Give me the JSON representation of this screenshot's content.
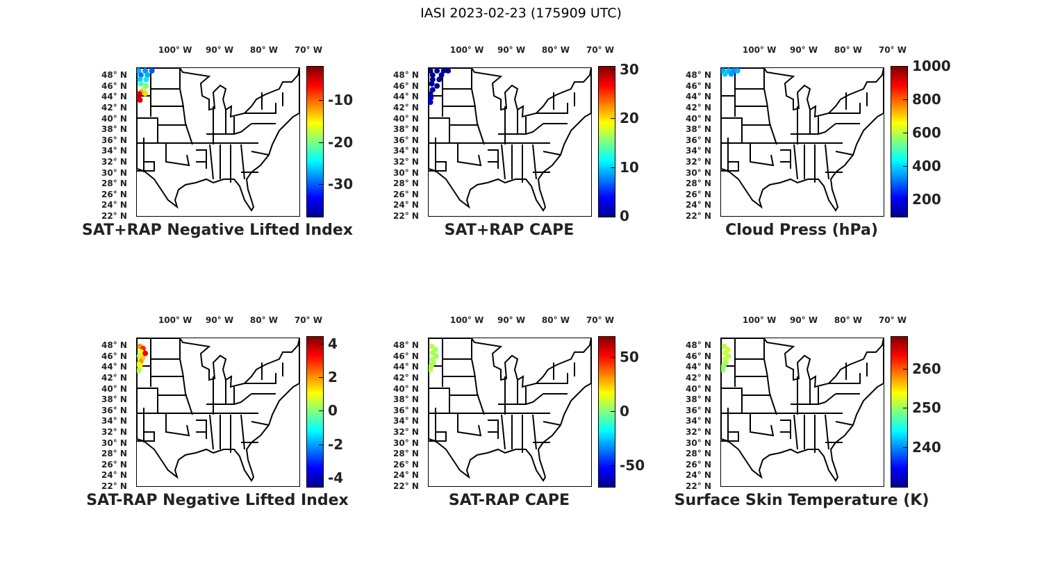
{
  "suptitle": "IASI 2023-02-23 (175909 UTC)",
  "lon_ticks": [
    {
      "lon": -100,
      "label": "100° W"
    },
    {
      "lon": -90,
      "label": "90° W"
    },
    {
      "lon": -80,
      "label": "80° W"
    },
    {
      "lon": -70,
      "label": "70° W"
    }
  ],
  "lat_ticks": [
    {
      "lat": 48,
      "label": "48° N"
    },
    {
      "lat": 46,
      "label": "46° N"
    },
    {
      "lat": 44,
      "label": "44° N"
    },
    {
      "lat": 42,
      "label": "42° N"
    },
    {
      "lat": 40,
      "label": "40° N"
    },
    {
      "lat": 38,
      "label": "38° N"
    },
    {
      "lat": 36,
      "label": "36° N"
    },
    {
      "lat": 34,
      "label": "34° N"
    },
    {
      "lat": 32,
      "label": "32° N"
    },
    {
      "lat": 30,
      "label": "30° N"
    },
    {
      "lat": 28,
      "label": "28° N"
    },
    {
      "lat": 26,
      "label": "26° N"
    },
    {
      "lat": 24,
      "label": "24° N"
    },
    {
      "lat": 22,
      "label": "22° N"
    }
  ],
  "panels": [
    {
      "title": "SAT+RAP Negative Lifted Index",
      "clim": [
        -37.6,
        -1.9
      ],
      "ticks": [
        -10,
        -20,
        -30
      ],
      "points": [
        [
          48.8,
          -106.5,
          -27
        ],
        [
          48.8,
          -105,
          -28
        ],
        [
          48.8,
          -103.5,
          -30
        ],
        [
          48,
          -106,
          -29
        ],
        [
          48,
          -104.5,
          -27
        ],
        [
          47.2,
          -106.2,
          -26
        ],
        [
          47.2,
          -104.8,
          -25
        ],
        [
          46.4,
          -106,
          -22
        ],
        [
          46,
          -104.8,
          -20
        ],
        [
          45.3,
          -105.5,
          -18
        ],
        [
          44.8,
          -106,
          -12
        ],
        [
          44.5,
          -106.3,
          -5
        ],
        [
          44,
          -106.5,
          -4
        ],
        [
          43.4,
          -106.2,
          -5
        ],
        [
          44.6,
          -105,
          -14
        ]
      ]
    },
    {
      "title": "SAT+RAP CAPE",
      "clim": [
        0,
        30.7
      ],
      "ticks": [
        30,
        20,
        10,
        0
      ],
      "points": [
        [
          48.8,
          -106.5,
          0
        ],
        [
          48.8,
          -105,
          0
        ],
        [
          48.8,
          -103.5,
          0
        ],
        [
          48.8,
          -102.5,
          0
        ],
        [
          48,
          -106,
          0
        ],
        [
          48,
          -104,
          0
        ],
        [
          47.2,
          -106,
          0
        ],
        [
          47.2,
          -104.5,
          0
        ],
        [
          46.4,
          -106.2,
          0.5
        ],
        [
          46,
          -105,
          0
        ],
        [
          45.3,
          -106,
          1
        ],
        [
          44.5,
          -106.5,
          0
        ],
        [
          43.8,
          -106.4,
          2
        ],
        [
          43,
          -106.5,
          3
        ]
      ]
    },
    {
      "title": "Cloud Press (hPa)",
      "clim": [
        100,
        1000
      ],
      "ticks": [
        1000,
        800,
        600,
        400,
        200
      ],
      "points": [
        [
          48.8,
          -106.5,
          360
        ],
        [
          48.8,
          -105.2,
          380
        ],
        [
          48.8,
          -104,
          340
        ],
        [
          48.8,
          -103.2,
          370
        ],
        [
          48.2,
          -106,
          390
        ],
        [
          48.2,
          -104.6,
          350
        ]
      ]
    },
    {
      "title": "SAT-RAP Negative Lifted Index",
      "clim": [
        -4.5,
        4.45
      ],
      "ticks": [
        4,
        2,
        0,
        -2,
        -4
      ],
      "points": [
        [
          47.8,
          -106.2,
          2
        ],
        [
          47.4,
          -105.5,
          3
        ],
        [
          46.8,
          -106,
          1
        ],
        [
          46.5,
          -105,
          3.5
        ],
        [
          46,
          -106.3,
          0.5
        ],
        [
          45.6,
          -105.6,
          1.5
        ],
        [
          45,
          -106,
          2
        ],
        [
          44.5,
          -106.5,
          0.8
        ],
        [
          44,
          -106.2,
          1
        ],
        [
          43.3,
          -106.5,
          0.3
        ]
      ]
    },
    {
      "title": "SAT-RAP CAPE",
      "clim": [
        -69,
        69
      ],
      "ticks": [
        50,
        0,
        -50
      ],
      "points": [
        [
          47.8,
          -106.2,
          8
        ],
        [
          47.2,
          -105.4,
          5
        ],
        [
          46.6,
          -106,
          6
        ],
        [
          46,
          -105.2,
          4
        ],
        [
          45.4,
          -106,
          7
        ],
        [
          44.8,
          -105.8,
          5
        ],
        [
          44.2,
          -106.3,
          6
        ],
        [
          43.5,
          -106.5,
          8
        ]
      ]
    },
    {
      "title": "Surface Skin Temperature (K)",
      "clim": [
        230.2,
        268.2
      ],
      "ticks": [
        260,
        250,
        240
      ],
      "points": [
        [
          47.8,
          -106.2,
          251
        ],
        [
          47.2,
          -105.4,
          252
        ],
        [
          46.6,
          -106,
          252
        ],
        [
          46,
          -105.2,
          251
        ],
        [
          45.4,
          -106,
          252
        ],
        [
          44.8,
          -105.8,
          251
        ],
        [
          44.2,
          -106.3,
          250
        ],
        [
          43.5,
          -106.5,
          250
        ]
      ]
    }
  ]
}
